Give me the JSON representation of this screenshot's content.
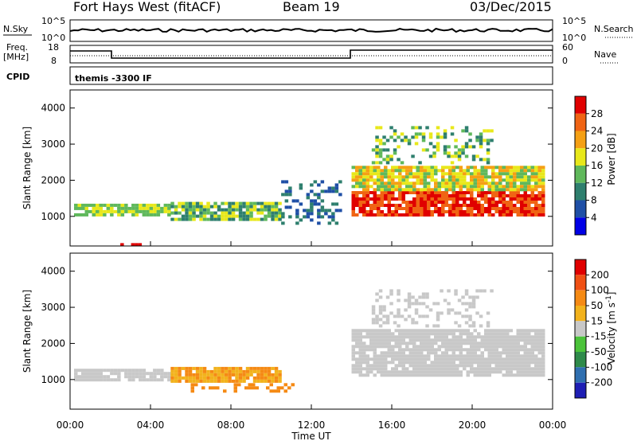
{
  "header": {
    "station": "Fort Hays West (fitACF)",
    "beam": "Beam 19",
    "date": "03/Dec/2015"
  },
  "noise_panel": {
    "left_label": "N.Sky",
    "left_ticks": [
      "10^5",
      "10^0"
    ],
    "right_label": "N.Search",
    "right_ticks": [
      "10^5",
      "10^0"
    ]
  },
  "freq_panel": {
    "left_label_1": "Freq.",
    "left_label_2": "[MHz]",
    "left_ticks": [
      "18",
      "8"
    ],
    "right_label": "Nave",
    "right_ticks": [
      "60",
      "0"
    ]
  },
  "cpid_panel": {
    "label": "CPID",
    "text": "themis -3300 IF"
  },
  "time_axis": {
    "title": "Time UT",
    "ticks": [
      "00:00",
      "04:00",
      "08:00",
      "12:00",
      "16:00",
      "20:00",
      "00:00"
    ]
  },
  "chart_data": [
    {
      "type": "heatmap",
      "quantity": "Power",
      "xlabel": "Time UT",
      "ylabel": "Slant Range [km]",
      "x_unit": "hours UT",
      "xlim": [
        0,
        24
      ],
      "ylim": [
        180,
        4500
      ],
      "y_ticks": [
        1000,
        2000,
        3000,
        4000
      ],
      "colorbar": {
        "label": "Power [dB]",
        "ticks": [
          "4",
          "8",
          "12",
          "16",
          "20",
          "24",
          "28"
        ],
        "colors": [
          "#0000e6",
          "#1f4fa6",
          "#2e7f6e",
          "#5fb85b",
          "#e8e81a",
          "#f5a014",
          "#f06414",
          "#e00000"
        ]
      },
      "regions": [
        {
          "t0": 0.2,
          "t1": 5.0,
          "r0": 1000,
          "r1": 1350,
          "level": [
            3,
            4
          ]
        },
        {
          "t0": 5.0,
          "t1": 10.5,
          "r0": 900,
          "r1": 1400,
          "level": [
            2,
            4
          ]
        },
        {
          "t0": 10.5,
          "t1": 13.5,
          "r0": 800,
          "r1": 2000,
          "level": [
            1,
            2
          ],
          "sparse": true
        },
        {
          "t0": 14.0,
          "t1": 23.5,
          "r0": 1000,
          "r1": 1700,
          "level": [
            6,
            7
          ]
        },
        {
          "t0": 14.0,
          "t1": 23.5,
          "r0": 1700,
          "r1": 2400,
          "level": [
            3,
            5
          ]
        },
        {
          "t0": 15.0,
          "t1": 21.0,
          "r0": 2500,
          "r1": 3500,
          "level": [
            2,
            4
          ],
          "sparse": true
        },
        {
          "t0": 2.5,
          "t1": 3.5,
          "r0": 200,
          "r1": 260,
          "level": [
            7,
            7
          ]
        }
      ]
    },
    {
      "type": "heatmap",
      "quantity": "Velocity",
      "xlabel": "Time UT",
      "ylabel": "Slant Range [km]",
      "x_unit": "hours UT",
      "xlim": [
        0,
        24
      ],
      "ylim": [
        180,
        4500
      ],
      "y_ticks": [
        1000,
        2000,
        3000,
        4000
      ],
      "colorbar": {
        "label": "Velocity [m s-1]",
        "label_text": "Velocity [m s",
        "label_sup": "-1",
        "label_end": "]",
        "ticks": [
          "200",
          "100",
          "50",
          "15",
          "-15",
          "-50",
          "-100",
          "-200"
        ],
        "colors": [
          "#1e1eb4",
          "#2f6fb0",
          "#2e8a4a",
          "#4bc33a",
          "#c8c8c8",
          "#f2b21c",
          "#f58a14",
          "#f05014",
          "#e00000"
        ]
      },
      "regions": [
        {
          "t0": 0.2,
          "t1": 5.0,
          "r0": 1000,
          "r1": 1300,
          "level": [
            4,
            4
          ]
        },
        {
          "t0": 5.0,
          "t1": 10.5,
          "r0": 950,
          "r1": 1350,
          "level": [
            5,
            6
          ]
        },
        {
          "t0": 6.0,
          "t1": 11.0,
          "r0": 700,
          "r1": 900,
          "level": [
            6,
            6
          ],
          "sparse": true
        },
        {
          "t0": 14.0,
          "t1": 23.5,
          "r0": 1100,
          "r1": 2400,
          "level": [
            4,
            4
          ]
        },
        {
          "t0": 15.0,
          "t1": 21.0,
          "r0": 2500,
          "r1": 3500,
          "level": [
            4,
            4
          ],
          "sparse": true
        }
      ]
    }
  ]
}
